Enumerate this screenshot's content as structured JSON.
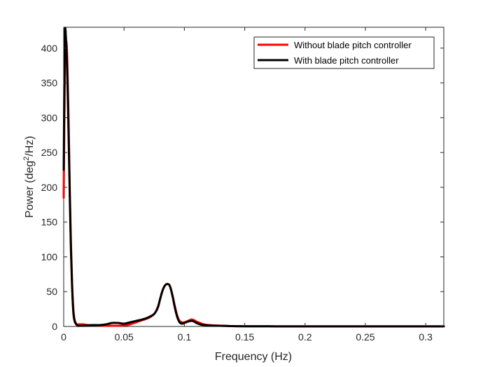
{
  "chart_data": {
    "type": "line",
    "xlabel": "Frequency (Hz)",
    "ylabel_main": "Power (deg",
    "ylabel_sup": "2",
    "ylabel_tail": "/Hz)",
    "xlim": [
      0,
      0.315
    ],
    "ylim": [
      0,
      430
    ],
    "xticks": [
      0,
      0.05,
      0.1,
      0.15,
      0.2,
      0.25,
      0.3
    ],
    "xtick_labels": [
      "0",
      "0.05",
      "0.1",
      "0.15",
      "0.2",
      "0.25",
      "0.3"
    ],
    "yticks": [
      0,
      50,
      100,
      150,
      200,
      250,
      300,
      350,
      400
    ],
    "ytick_labels": [
      "0",
      "50",
      "100",
      "150",
      "200",
      "250",
      "300",
      "350",
      "400"
    ],
    "grid": false,
    "legend_position": "top-right",
    "series": [
      {
        "name": "Without blade pitch controller",
        "color": "#ff0000",
        "x": [
          0,
          0.001,
          0.002,
          0.003,
          0.004,
          0.005,
          0.006,
          0.007,
          0.008,
          0.009,
          0.01,
          0.011,
          0.012,
          0.014,
          0.016,
          0.02,
          0.025,
          0.03,
          0.035,
          0.04,
          0.045,
          0.05,
          0.055,
          0.06,
          0.065,
          0.07,
          0.075,
          0.078,
          0.08,
          0.082,
          0.084,
          0.086,
          0.088,
          0.09,
          0.092,
          0.094,
          0.096,
          0.098,
          0.1,
          0.103,
          0.106,
          0.108,
          0.11,
          0.113,
          0.116,
          0.12,
          0.125,
          0.13,
          0.135,
          0.14,
          0.15,
          0.17,
          0.2,
          0.25,
          0.3,
          0.315
        ],
        "y": [
          185,
          370,
          410,
          380,
          300,
          200,
          120,
          60,
          25,
          10,
          5,
          3,
          3,
          3,
          3,
          2,
          2,
          1.5,
          1,
          1,
          1,
          1.5,
          3,
          6,
          9,
          12,
          18,
          28,
          40,
          52,
          59,
          61,
          58,
          46,
          30,
          16,
          8,
          6,
          6,
          8,
          10,
          9,
          7,
          5,
          3,
          2,
          1.5,
          1,
          0.8,
          0.5,
          0.3,
          0.2,
          0.1,
          0.1,
          0.1,
          0.1
        ]
      },
      {
        "name": "With blade pitch controller",
        "color": "#000000",
        "x": [
          0,
          0.001,
          0.002,
          0.003,
          0.004,
          0.005,
          0.006,
          0.007,
          0.008,
          0.009,
          0.01,
          0.011,
          0.012,
          0.014,
          0.016,
          0.02,
          0.025,
          0.03,
          0.035,
          0.04,
          0.045,
          0.05,
          0.055,
          0.06,
          0.065,
          0.07,
          0.075,
          0.078,
          0.08,
          0.082,
          0.084,
          0.086,
          0.088,
          0.09,
          0.092,
          0.094,
          0.096,
          0.098,
          0.1,
          0.103,
          0.106,
          0.108,
          0.11,
          0.113,
          0.116,
          0.12,
          0.125,
          0.13,
          0.135,
          0.14,
          0.15,
          0.17,
          0.2,
          0.25,
          0.3,
          0.315
        ],
        "y": [
          225,
          425,
          410,
          360,
          280,
          190,
          110,
          55,
          20,
          8,
          4,
          2,
          1,
          1,
          1,
          1.5,
          2,
          2,
          3,
          5,
          5,
          4,
          6,
          8,
          10,
          13,
          18,
          27,
          40,
          52,
          59,
          61,
          58,
          45,
          28,
          14,
          6,
          4,
          5,
          7,
          8,
          7,
          5,
          3,
          2,
          1.5,
          1,
          1,
          0.8,
          0.5,
          0.3,
          0.2,
          0.1,
          0.1,
          0.1,
          0.1
        ]
      }
    ]
  }
}
